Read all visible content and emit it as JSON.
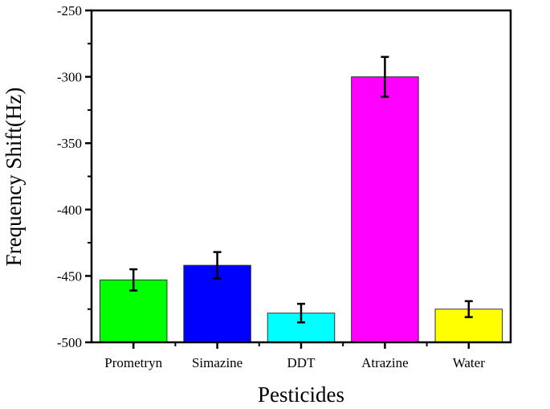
{
  "chart_data": {
    "type": "bar",
    "title": "",
    "xlabel": "Pesticides",
    "ylabel": "Frequency Shift(Hz)",
    "categories": [
      "Prometryn",
      "Simazine",
      "DDT",
      "Atrazine",
      "Water"
    ],
    "values": [
      -453,
      -442,
      -478,
      -300,
      -475
    ],
    "errors": [
      8,
      10,
      7,
      15,
      6
    ],
    "colors": [
      "#00ff00",
      "#0000ff",
      "#00ffff",
      "#ff00ff",
      "#ffff00"
    ],
    "ylim": [
      -500,
      -250
    ],
    "yticks": [
      -500,
      -450,
      -400,
      -350,
      -300,
      -250
    ],
    "grid": false,
    "legend": "none"
  }
}
